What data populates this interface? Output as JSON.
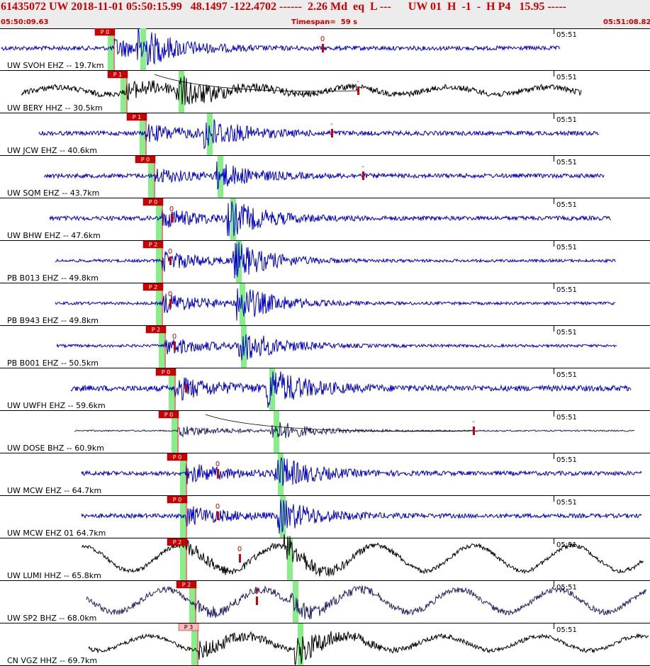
{
  "header": {
    "title": "61435072 UW 2018-11-01 05:50:15.99   48.1497 -122.4702 ------  2.26 Md  eq  L ---      UW 01  H  -1  -  H P4   15.95 -----",
    "start_time": "05:50:09.63",
    "timespan": "Timespan=  59 s",
    "end_time": "05:51:08.82"
  },
  "colors": {
    "blue_trace": "#0000cc",
    "black_trace": "#000000",
    "navy_trace": "#222266",
    "pick": "#cc0000",
    "phase_band": "#88ee88"
  },
  "traces": [
    {
      "label": "UW SVOH EHZ -- 19.7km",
      "time_label": "05:51",
      "pick_label": "P 0",
      "coda_label": "0",
      "color": "blue"
    },
    {
      "label": "UW BERY HHZ -- 30.5km",
      "time_label": "05:51",
      "pick_label": "P 1",
      "coda_label": "-",
      "color": "black"
    },
    {
      "label": "UW JCW EHZ -- 40.6km",
      "time_label": "05:51",
      "pick_label": "P 1",
      "coda_label": "-",
      "color": "blue"
    },
    {
      "label": "UW SQM EHZ -- 43.7km",
      "time_label": "05:51",
      "pick_label": "P 0",
      "coda_label": "-",
      "color": "blue"
    },
    {
      "label": "UW BHW EHZ -- 47.6km",
      "time_label": "05:51",
      "pick_label": "P 0",
      "coda_label": "0",
      "color": "blue"
    },
    {
      "label": "PB B013 EHZ -- 49.8km",
      "time_label": "05:51",
      "pick_label": "P 2",
      "coda_label": "0",
      "color": "blue"
    },
    {
      "label": "PB B943 EHZ -- 49.8km",
      "time_label": "05:51",
      "pick_label": "P 2",
      "coda_label": "0",
      "color": "blue"
    },
    {
      "label": "PB B001 EHZ -- 50.5km",
      "time_label": "05:51",
      "pick_label": "P 2",
      "coda_label": "0",
      "color": "blue"
    },
    {
      "label": "UW UWFH EHZ -- 59.6km",
      "time_label": "05:51",
      "pick_label": "P 0",
      "coda_label": "",
      "color": "blue"
    },
    {
      "label": "UW DOSE BHZ -- 60.9km",
      "time_label": "05:51",
      "pick_label": "P 0",
      "coda_label": "-",
      "color": "navy"
    },
    {
      "label": "UW MCW EHZ -- 64.7km",
      "time_label": "05:51",
      "pick_label": "P 0",
      "coda_label": "0",
      "color": "blue"
    },
    {
      "label": "UW MCW EHZ 01 64.7km",
      "time_label": "05:51",
      "pick_label": "P 0",
      "coda_label": "0",
      "color": "blue"
    },
    {
      "label": "UW LUMI HHZ -- 65.8km",
      "time_label": "05:51",
      "pick_label": "P 2",
      "coda_label": "0",
      "color": "black"
    },
    {
      "label": "UW SP2 BHZ -- 68.0km",
      "time_label": "05:51",
      "pick_label": "P 2",
      "coda_label": "0",
      "color": "navy"
    },
    {
      "label": "CN VGZ HHZ -- 69.7km",
      "time_label": "05:51",
      "pick_label": "P 3",
      "coda_label": "",
      "color": "black"
    }
  ]
}
